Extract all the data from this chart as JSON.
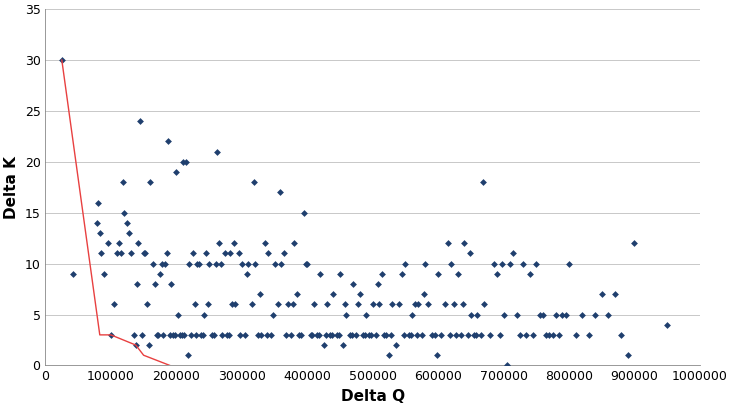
{
  "scatter_x": [
    25000,
    42000,
    78000,
    80000,
    83000,
    85000,
    90000,
    95000,
    100000,
    105000,
    110000,
    112000,
    115000,
    118000,
    120000,
    125000,
    128000,
    130000,
    135000,
    138000,
    140000,
    142000,
    145000,
    148000,
    150000,
    152000,
    155000,
    158000,
    160000,
    165000,
    168000,
    170000,
    172000,
    175000,
    178000,
    180000,
    182000,
    185000,
    188000,
    190000,
    192000,
    195000,
    198000,
    200000,
    202000,
    205000,
    208000,
    210000,
    212000,
    215000,
    218000,
    220000,
    222000,
    225000,
    228000,
    230000,
    232000,
    235000,
    238000,
    240000,
    242000,
    245000,
    248000,
    250000,
    255000,
    258000,
    260000,
    262000,
    265000,
    268000,
    270000,
    275000,
    278000,
    280000,
    282000,
    285000,
    288000,
    290000,
    295000,
    298000,
    300000,
    305000,
    308000,
    310000,
    315000,
    318000,
    320000,
    325000,
    328000,
    330000,
    335000,
    338000,
    340000,
    345000,
    348000,
    350000,
    355000,
    358000,
    360000,
    365000,
    368000,
    370000,
    375000,
    378000,
    380000,
    385000,
    388000,
    390000,
    395000,
    398000,
    400000,
    405000,
    408000,
    410000,
    415000,
    418000,
    420000,
    425000,
    428000,
    430000,
    435000,
    438000,
    440000,
    445000,
    448000,
    450000,
    455000,
    458000,
    460000,
    465000,
    468000,
    470000,
    475000,
    478000,
    480000,
    485000,
    488000,
    490000,
    495000,
    498000,
    500000,
    505000,
    508000,
    510000,
    515000,
    518000,
    520000,
    525000,
    528000,
    530000,
    535000,
    540000,
    545000,
    548000,
    550000,
    555000,
    558000,
    560000,
    565000,
    568000,
    570000,
    575000,
    578000,
    580000,
    585000,
    590000,
    595000,
    598000,
    600000,
    605000,
    610000,
    615000,
    618000,
    620000,
    625000,
    628000,
    630000,
    635000,
    638000,
    640000,
    645000,
    648000,
    650000,
    655000,
    658000,
    660000,
    665000,
    668000,
    670000,
    680000,
    685000,
    690000,
    695000,
    698000,
    700000,
    705000,
    710000,
    715000,
    720000,
    725000,
    730000,
    735000,
    740000,
    745000,
    750000,
    755000,
    760000,
    765000,
    770000,
    775000,
    780000,
    785000,
    790000,
    795000,
    800000,
    810000,
    820000,
    830000,
    840000,
    850000,
    860000,
    870000,
    880000,
    890000,
    900000,
    950000
  ],
  "scatter_y": [
    30,
    9,
    14,
    16,
    13,
    11,
    9,
    12,
    3,
    6,
    11,
    12,
    11,
    18,
    15,
    14,
    13,
    11,
    3,
    2,
    8,
    12,
    24,
    3,
    11,
    11,
    6,
    2,
    18,
    10,
    8,
    3,
    3,
    9,
    10,
    3,
    10,
    11,
    22,
    3,
    8,
    3,
    3,
    19,
    5,
    3,
    3,
    20,
    3,
    20,
    1,
    10,
    3,
    11,
    6,
    3,
    10,
    10,
    3,
    3,
    5,
    11,
    6,
    10,
    3,
    3,
    10,
    21,
    12,
    10,
    3,
    11,
    3,
    3,
    11,
    6,
    12,
    6,
    11,
    3,
    10,
    3,
    9,
    10,
    6,
    18,
    10,
    3,
    7,
    3,
    12,
    3,
    11,
    3,
    5,
    10,
    6,
    17,
    10,
    11,
    3,
    6,
    3,
    6,
    12,
    7,
    3,
    3,
    15,
    10,
    10,
    3,
    3,
    6,
    3,
    3,
    9,
    2,
    3,
    6,
    3,
    3,
    7,
    3,
    3,
    9,
    2,
    6,
    5,
    3,
    3,
    8,
    3,
    6,
    7,
    3,
    3,
    5,
    3,
    3,
    6,
    3,
    8,
    6,
    9,
    3,
    3,
    1,
    3,
    6,
    2,
    6,
    9,
    3,
    10,
    3,
    3,
    5,
    6,
    3,
    6,
    3,
    7,
    10,
    6,
    3,
    3,
    1,
    9,
    3,
    6,
    12,
    3,
    10,
    6,
    3,
    9,
    3,
    6,
    12,
    3,
    11,
    5,
    3,
    3,
    5,
    3,
    18,
    6,
    3,
    10,
    9,
    3,
    10,
    5,
    0,
    10,
    11,
    5,
    3,
    10,
    3,
    9,
    3,
    10,
    5,
    5,
    3,
    3,
    3,
    5,
    3,
    5,
    5,
    10,
    3,
    5,
    3,
    5,
    7,
    5,
    7,
    3,
    1,
    12,
    4
  ],
  "pareto_x": [
    25000,
    83000,
    100000,
    138000,
    150000,
    190000
  ],
  "pareto_y": [
    30,
    3,
    3,
    2,
    1,
    0
  ],
  "scatter_color": "#1f3f6e",
  "pareto_color": "#e84040",
  "xlabel": "Delta Q",
  "ylabel": "Delta K",
  "xlim": [
    0,
    1000000
  ],
  "ylim": [
    0,
    35
  ],
  "xticks": [
    0,
    100000,
    200000,
    300000,
    400000,
    500000,
    600000,
    700000,
    800000,
    900000,
    1000000
  ],
  "yticks": [
    0,
    5,
    10,
    15,
    20,
    25,
    30,
    35
  ],
  "tick_fontsize": 9,
  "label_fontsize": 11
}
